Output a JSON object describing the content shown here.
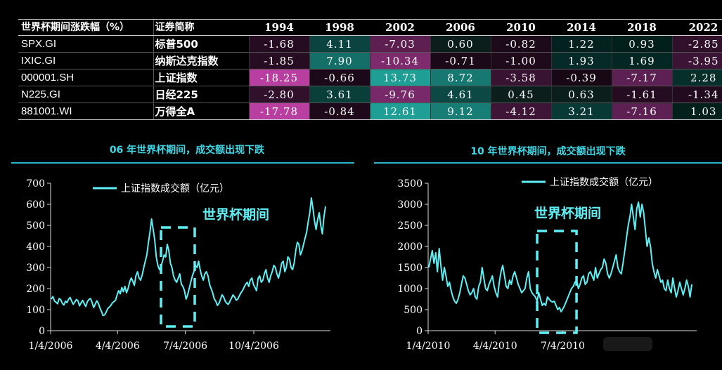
{
  "table": {
    "header": {
      "name": "世界杯期间涨跌幅（%）",
      "abbr": "证券简称"
    },
    "years": [
      "1994",
      "1998",
      "2002",
      "2006",
      "2010",
      "2014",
      "2018",
      "2022"
    ],
    "rows": [
      {
        "code": "SPX.GI",
        "abbr": "标普500",
        "values": [
          "-1.68",
          "4.11",
          "-7.03",
          "0.60",
          "-0.82",
          "1.22",
          "0.93",
          "-2.85"
        ]
      },
      {
        "code": "IXIC.GI",
        "abbr": "纳斯达克指数",
        "values": [
          "-1.85",
          "7.90",
          "-10.34",
          "-0.71",
          "-1.00",
          "1.93",
          "1.69",
          "-3.95"
        ]
      },
      {
        "code": "000001.SH",
        "abbr": "上证指数",
        "values": [
          "-18.25",
          "-0.66",
          "13.73",
          "8.72",
          "-3.58",
          "-0.39",
          "-7.17",
          "2.28"
        ]
      },
      {
        "code": "N225.GI",
        "abbr": "日经225",
        "values": [
          "-2.80",
          "3.61",
          "-9.76",
          "4.61",
          "0.45",
          "0.63",
          "-1.61",
          "-1.34"
        ]
      },
      {
        "code": "881001.WI",
        "abbr": "万得全A",
        "values": [
          "-17.78",
          "-0.84",
          "12.61",
          "9.12",
          "-4.12",
          "3.21",
          "-7.16",
          "1.03"
        ]
      }
    ],
    "colors": {
      "pos_strong": "#1E9E94",
      "neg_strong": "#B83FA0"
    }
  },
  "chart_data": [
    {
      "type": "line",
      "title": "06 年世界杯期间，成交额出现下跌",
      "legend": "上证指数成交额（亿元）",
      "annotation": "世界杯期间",
      "ylim": [
        0,
        700
      ],
      "yticks": [
        "0",
        "100",
        "200",
        "300",
        "400",
        "500",
        "600",
        "700"
      ],
      "xticks": [
        "1/4/2006",
        "4/4/2006",
        "7/4/2006",
        "10/4/2006"
      ],
      "x_range": [
        "2006-01-04",
        "2007-01-15"
      ],
      "line_color": "#5FF0F5",
      "world_cup_window": [
        "2006-06-09",
        "2006-07-09"
      ],
      "series": [
        {
          "values": [
            150,
            162,
            141,
            135,
            128,
            152,
            147,
            130,
            122,
            140,
            133,
            149,
            158,
            140,
            125,
            136,
            148,
            142,
            118,
            132,
            144,
            128,
            115,
            138,
            148,
            153,
            135,
            110,
            125,
            142,
            130,
            108,
            92,
            72,
            75,
            88,
            105,
            112,
            120,
            132,
            138,
            145,
            170,
            190,
            175,
            205,
            185,
            210,
            180,
            200,
            230,
            250,
            235,
            215,
            260,
            280,
            250,
            240,
            265,
            300,
            330,
            360,
            420,
            470,
            530,
            480,
            430,
            350,
            310,
            290,
            305,
            330,
            360,
            350,
            410,
            380,
            320,
            300,
            260,
            240,
            230,
            250,
            270,
            220,
            210,
            190,
            150,
            170,
            200,
            230,
            260,
            280,
            310,
            300,
            330,
            290,
            260,
            240,
            270,
            280,
            260,
            220,
            200,
            180,
            150,
            140,
            120,
            130,
            150,
            170,
            160,
            140,
            130,
            125,
            140,
            155,
            170,
            160,
            145,
            150,
            165,
            180,
            190,
            205,
            220,
            230,
            210,
            240,
            250,
            220,
            205,
            190,
            250,
            260,
            230,
            240,
            270,
            290,
            250,
            230,
            260,
            280,
            310,
            300,
            270,
            250,
            280,
            320,
            330,
            280,
            300,
            350,
            340,
            300,
            290,
            320,
            380,
            420,
            410,
            360,
            380,
            410,
            440,
            470,
            520,
            560,
            630,
            580,
            520,
            480,
            530,
            560,
            500,
            460,
            540,
            590
          ]
        }
      ]
    },
    {
      "type": "line",
      "title": "10 年世界杯期间，成交额出现下跌",
      "legend": "上证指数成交额（亿元）",
      "annotation": "世界杯期间",
      "ylim": [
        0,
        3500
      ],
      "yticks": [
        "0",
        "500",
        "1000",
        "1500",
        "2000",
        "2500",
        "3000",
        "3500"
      ],
      "xticks": [
        "1/4/2010",
        "4/4/2010",
        "7/4/2010"
      ],
      "x_range": [
        "2010-01-04",
        "2010-12-31"
      ],
      "line_color": "#5FF0F5",
      "world_cup_window": [
        "2010-06-11",
        "2010-07-11"
      ],
      "series": [
        {
          "values": [
            1500,
            1700,
            1900,
            1600,
            1850,
            1400,
            1950,
            1550,
            1200,
            1500,
            1300,
            1050,
            1150,
            950,
            800,
            700,
            650,
            750,
            900,
            1100,
            1300,
            1250,
            1100,
            950,
            850,
            900,
            1000,
            800,
            750,
            1050,
            1150,
            1500,
            1250,
            1000,
            950,
            1100,
            1200,
            1300,
            1050,
            900,
            800,
            1150,
            1400,
            1550,
            1300,
            1050,
            1000,
            1200,
            1100,
            1300,
            1400,
            1250,
            1100,
            1000,
            900,
            950,
            1000,
            1250,
            1400,
            1000,
            900,
            850,
            800,
            700,
            900,
            750,
            600,
            650,
            600,
            800,
            750,
            700,
            680,
            700,
            600,
            500,
            550,
            450,
            520,
            600,
            700,
            800,
            900,
            1000,
            1050,
            1150,
            1200,
            1000,
            1100,
            1250,
            1300,
            1100,
            1150,
            1350,
            1400,
            1300,
            1200,
            1500,
            1250,
            1350,
            1450,
            1500,
            1700,
            1600,
            1350,
            1250,
            1350,
            1500,
            1650,
            1800,
            1500,
            1400,
            1350,
            1600,
            1900,
            2200,
            2500,
            2700,
            3000,
            2700,
            2400,
            2900,
            3050,
            2700,
            3000,
            2800,
            2400,
            2000,
            2200,
            2000,
            1600,
            1400,
            1250,
            1450,
            1300,
            1150,
            1200,
            1000,
            950,
            1200,
            1000,
            900,
            1250,
            1000,
            800,
            950,
            1150,
            1000,
            850,
            1000,
            1200,
            1050,
            800,
            1100
          ]
        }
      ]
    }
  ]
}
